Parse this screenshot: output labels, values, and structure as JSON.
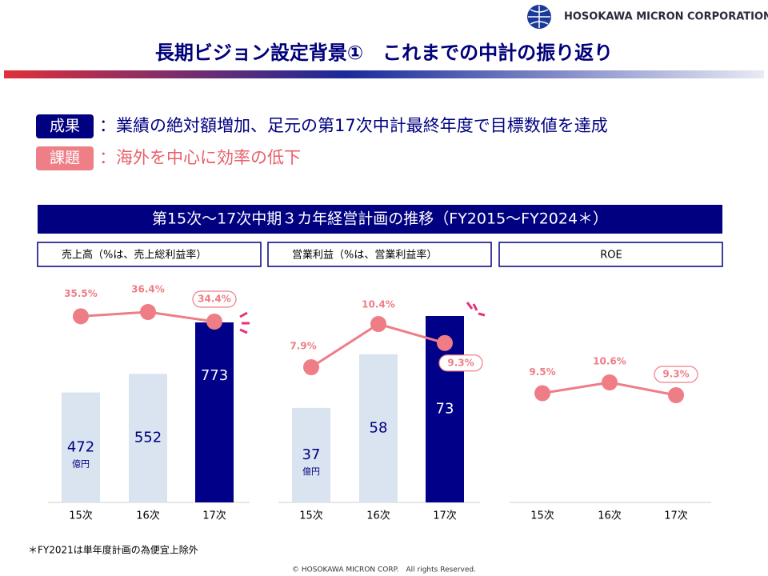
{
  "header": {
    "company": "HOSOKAWA MICRON CORPORATION",
    "title": "長期ビジョン設定背景①　これまでの中計の振り返り"
  },
  "points": [
    {
      "tag": "成果",
      "text": "：業績の絶対額増加、足元の第17次中計最終年度で目標数値を達成"
    },
    {
      "tag": "課題",
      "text": "：海外を中心に効率の低下"
    }
  ],
  "banner": "第15次～17次中期３カ年経営計画の推移（FY2015～FY2024＊）",
  "chart_data": [
    {
      "type": "bar",
      "title": "売上高（%は、売上総利益率）",
      "categories": [
        "15次",
        "16次",
        "17次"
      ],
      "values": [
        472,
        552,
        773
      ],
      "colors": [
        "#dae3f0",
        "#dae3f0",
        "#000088"
      ],
      "unit": "億円",
      "line_values": [
        35.5,
        36.4,
        34.4
      ],
      "line_value_labels": [
        "35.5%",
        "36.4%",
        "34.4%"
      ],
      "line_color": "#ee7d86"
    },
    {
      "type": "bar",
      "title": "営業利益（%は、営業利益率）",
      "categories": [
        "15次",
        "16次",
        "17次"
      ],
      "values": [
        37,
        58,
        73
      ],
      "colors": [
        "#dae3f0",
        "#dae3f0",
        "#000088"
      ],
      "unit": "億円",
      "line_values": [
        7.9,
        10.4,
        9.3
      ],
      "line_value_labels": [
        "7.9%",
        "10.4%",
        "9.3%"
      ],
      "line_color": "#ee7d86"
    },
    {
      "type": "line",
      "title": "ROE",
      "categories": [
        "15次",
        "16次",
        "17次"
      ],
      "line_values": [
        9.5,
        10.6,
        9.3
      ],
      "line_value_labels": [
        "9.5%",
        "10.6%",
        "9.3%"
      ],
      "line_color": "#ee7d86"
    }
  ],
  "footer": {
    "note": "＊FY2021は単年度計画の為便宜上除外",
    "copyright": "© HOSOKAWA MICRON CORP.　All rights Reserved."
  }
}
